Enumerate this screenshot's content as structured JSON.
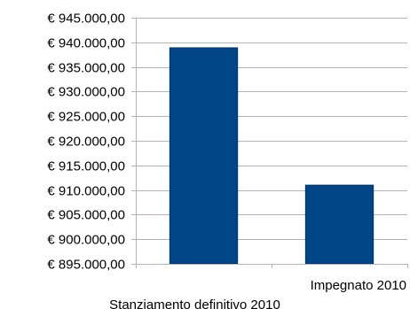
{
  "chart_data": {
    "type": "bar",
    "categories": [
      "Stanziamento definitivo 2010",
      "Impegnato 2010"
    ],
    "series": [
      {
        "values": [
          938900,
          911000
        ],
        "color": "#004586"
      }
    ],
    "ylim": [
      895000,
      945000
    ],
    "yticks": [
      895000,
      900000,
      905000,
      910000,
      915000,
      920000,
      925000,
      930000,
      935000,
      940000,
      945000
    ],
    "ytick_labels": [
      "€ 895.000,00",
      "€ 900.000,00",
      "€ 905.000,00",
      "€ 910.000,00",
      "€ 915.000,00",
      "€ 920.000,00",
      "€ 925.000,00",
      "€ 930.000,00",
      "€ 935.000,00",
      "€ 940.000,00",
      "€ 945.000,00"
    ],
    "grid": true,
    "grid_color": "#b3b3b3",
    "legend": "none"
  }
}
